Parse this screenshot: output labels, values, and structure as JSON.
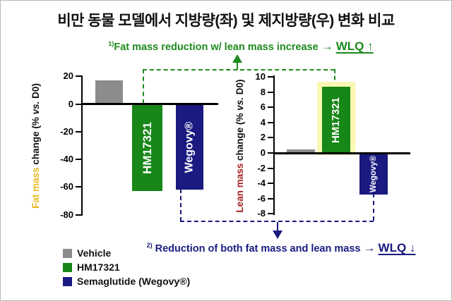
{
  "title": "비만 동물 모델에서 지방량(좌) 및 제지방량(우) 변화 비교",
  "colors": {
    "vehicle": "#8c8c8c",
    "hm17321": "#178717",
    "wegovy": "#1a1a80",
    "green_accent": "#1e8a1e",
    "navy_accent": "#1a1a80",
    "fat_label": "#e9b91f",
    "lean_label": "#a32121",
    "highlight_band": "#fbf7b2"
  },
  "annotation_top": {
    "sup": "1)",
    "text": "Fat mass reduction w/ lean mass increase",
    "arrow": "→",
    "wlq": "WLQ ↑"
  },
  "annotation_bottom": {
    "sup": "2)",
    "text": "Reduction of both fat mass and lean mass",
    "arrow": "→",
    "wlq": "WLQ ↓"
  },
  "legend": {
    "items": [
      {
        "label": "Vehicle",
        "color": "#8c8c8c"
      },
      {
        "label": "HM17321",
        "color": "#178717"
      },
      {
        "label": "Semaglutide (Wegovy®)",
        "color": "#1a1a80"
      }
    ]
  },
  "chart_data": [
    {
      "type": "bar",
      "side": "left",
      "ylabel": "Fat mass change (% vs. D0)",
      "ylabel_colored": "Fat mass",
      "ylabel_color": "#e9b91f",
      "ylabel_mid": " change (% ",
      "ylabel_italic": "vs.",
      "ylabel_end": " D0)",
      "categories": [
        "Vehicle",
        "HM17321",
        "Wegovy®"
      ],
      "values": [
        17,
        -62,
        -61
      ],
      "bar_labels": [
        "",
        "HM17321",
        "Wegovy®"
      ],
      "bar_colors": [
        "#8c8c8c",
        "#178717",
        "#1a1a80"
      ],
      "yticks": [
        20,
        0,
        -20,
        -40,
        -60,
        -80
      ],
      "ylim": [
        -80,
        20
      ],
      "grid": false,
      "legend_position": "bottom-left"
    },
    {
      "type": "bar",
      "side": "right",
      "ylabel": "Lean mass change (% vs. D0)",
      "ylabel_colored": "Lean mass",
      "ylabel_color": "#a32121",
      "ylabel_mid": " change (% ",
      "ylabel_italic": "vs.",
      "ylabel_end": " D0)",
      "categories": [
        "Vehicle",
        "HM17321",
        "Wegovy®"
      ],
      "values": [
        0.5,
        8.7,
        -5.3
      ],
      "bar_labels": [
        "",
        "HM17321",
        "Wegovy®"
      ],
      "bar_colors": [
        "#8c8c8c",
        "#178717",
        "#1a1a80"
      ],
      "yticks": [
        10,
        8,
        6,
        4,
        2,
        0,
        -2,
        -4,
        -6,
        -8
      ],
      "ylim": [
        -8,
        10
      ],
      "highlight_bar_index": 1,
      "highlight_color": "#fbf7b2",
      "grid": false,
      "legend_position": "bottom-left"
    }
  ]
}
